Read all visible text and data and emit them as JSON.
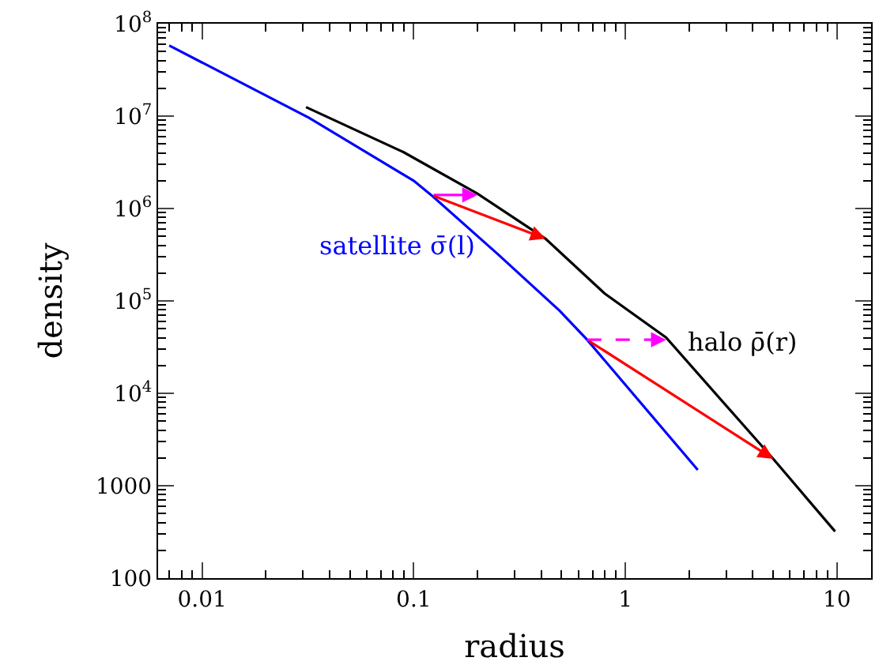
{
  "chart_data": {
    "type": "line",
    "xlabel": "radius",
    "ylabel": "density",
    "log": "xy",
    "legend": false,
    "xlim": [
      0.0062,
      14.5
    ],
    "xticks": [
      0.01,
      0.1,
      1,
      10
    ],
    "ylim": [
      100,
      100000000
    ],
    "yticks": [
      100,
      1000,
      {
        "value": 10000,
        "label": "10$^{4}$"
      },
      {
        "value": 100000,
        "label": "10$^{5}$"
      },
      {
        "value": 1000000,
        "label": "10$^{6}$"
      },
      {
        "value": 10000000,
        "label": "10$^{7}$"
      },
      {
        "value": 100000000,
        "label": "10$^{8}$"
      }
    ],
    "series": [
      {
        "name": "satellite σ̄(l)",
        "color": "#0000ff",
        "x": [
          0.007,
          0.032,
          0.1,
          0.121,
          0.25,
          0.49,
          0.66,
          2.2
        ],
        "values": [
          58000000,
          9600000,
          2000000,
          1400000,
          320000,
          78000,
          38000,
          1480
        ]
      },
      {
        "name": "halo ρ̄(r)",
        "color": "#000000",
        "x": [
          0.031,
          0.089,
          0.2,
          0.42,
          0.8,
          1.56,
          5.0,
          9.8
        ],
        "values": [
          12500000,
          4100000,
          1450000,
          470000,
          120000,
          40000,
          1950,
          320
        ]
      }
    ]
  }
}
